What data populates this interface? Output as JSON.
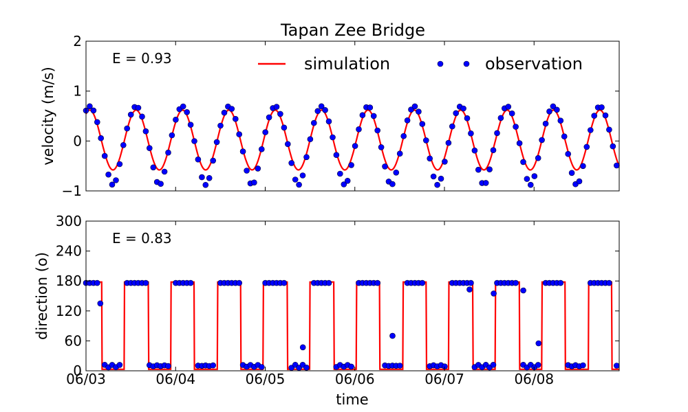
{
  "chart_data": [
    {
      "type": "line",
      "title": "Tapan Zee Bridge",
      "xlabel": "",
      "ylabel": "velocity (m/s)",
      "annotation": "E = 0.93",
      "xlim": [
        0,
        5.95
      ],
      "ylim": [
        -1,
        2
      ],
      "yticks": [
        -1,
        0,
        1,
        2
      ],
      "ytick_labels": [
        "−1",
        "0",
        "1",
        "2"
      ],
      "grid": false,
      "legend_position": "top-right",
      "series": [
        {
          "name": "simulation",
          "style": "line",
          "color": "#ff0000",
          "model": "sine",
          "amplitude": 0.6,
          "offset": 0.02,
          "period_days": 0.5175,
          "phase_days": 0.43
        },
        {
          "name": "observation",
          "style": "marker",
          "color": "#0000ff",
          "points": "sampled",
          "interval_days": 0.0417,
          "extra_amplitude": 0.15
        }
      ]
    },
    {
      "type": "line",
      "title": "",
      "xlabel": "time",
      "ylabel": "direction (o)",
      "annotation": "E = 0.83",
      "xlim": [
        0,
        5.95
      ],
      "ylim": [
        0,
        300
      ],
      "yticks": [
        0,
        60,
        120,
        180,
        240,
        300
      ],
      "ytick_labels": [
        "0",
        "60",
        "120",
        "180",
        "240",
        "300"
      ],
      "xticks": [
        0,
        1,
        2,
        3,
        4,
        5
      ],
      "xtick_labels": [
        "06/03",
        "06/04",
        "06/05",
        "06/06",
        "06/07",
        "06/08"
      ],
      "grid": false,
      "series": [
        {
          "name": "simulation",
          "style": "line",
          "color": "#ff0000",
          "high": 178,
          "low": 3
        },
        {
          "name": "observation",
          "style": "marker",
          "color": "#0000ff",
          "high": 176,
          "low": 6,
          "outliers": [
            {
              "x": 0.16,
              "y": 135
            },
            {
              "x": 2.42,
              "y": 47
            },
            {
              "x": 3.42,
              "y": 70
            },
            {
              "x": 4.28,
              "y": 163
            },
            {
              "x": 4.55,
              "y": 155
            },
            {
              "x": 4.88,
              "y": 161
            },
            {
              "x": 5.05,
              "y": 55
            }
          ]
        }
      ]
    }
  ]
}
